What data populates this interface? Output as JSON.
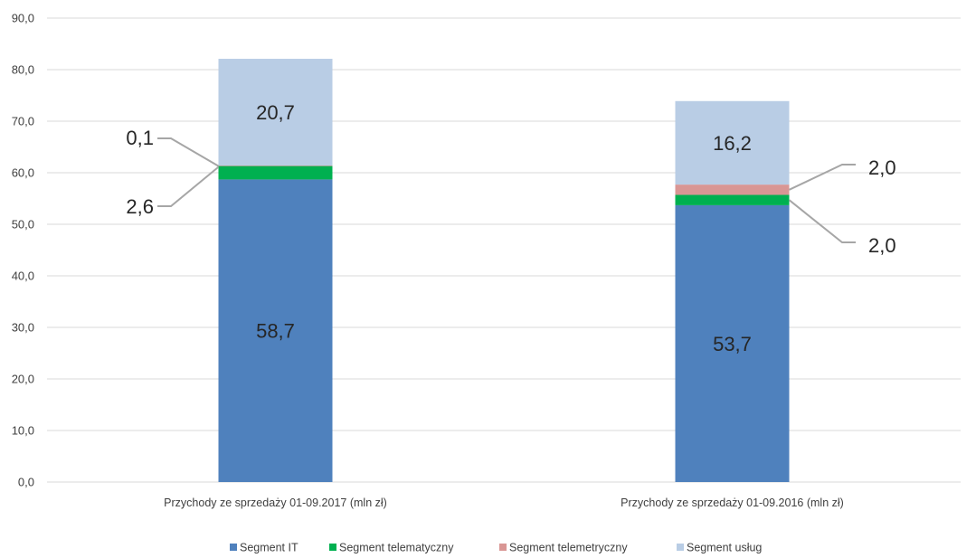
{
  "chart_data": {
    "type": "bar",
    "stacked": true,
    "categories": [
      "Przychody ze sprzedaży 01-09.2017 (mln zł)",
      "Przychody ze sprzedaży 01-09.2016 (mln zł)"
    ],
    "series": [
      {
        "name": "Segment IT",
        "color": "#4f81bd",
        "values": [
          58.7,
          53.7
        ],
        "labels": [
          "58,7",
          "53,7"
        ]
      },
      {
        "name": "Segment telematyczny",
        "color": "#00b050",
        "values": [
          2.6,
          2.0
        ],
        "labels": [
          "2,6",
          "2,0"
        ]
      },
      {
        "name": "Segment telemetryczny",
        "color": "#d99694",
        "values": [
          0.1,
          2.0
        ],
        "labels": [
          "0,1",
          "2,0"
        ]
      },
      {
        "name": "Segment usług",
        "color": "#b9cde5",
        "values": [
          20.7,
          16.2
        ],
        "labels": [
          "20,7",
          "16,2"
        ]
      }
    ],
    "ylim": [
      0,
      90
    ],
    "yticks": [
      0,
      10,
      20,
      30,
      40,
      50,
      60,
      70,
      80,
      90
    ],
    "ytick_labels": [
      "0,0",
      "10,0",
      "20,0",
      "30,0",
      "40,0",
      "50,0",
      "60,0",
      "70,0",
      "80,0",
      "90,0"
    ],
    "grid": true,
    "legend_position": "bottom",
    "title": "",
    "xlabel": "",
    "ylabel": ""
  }
}
